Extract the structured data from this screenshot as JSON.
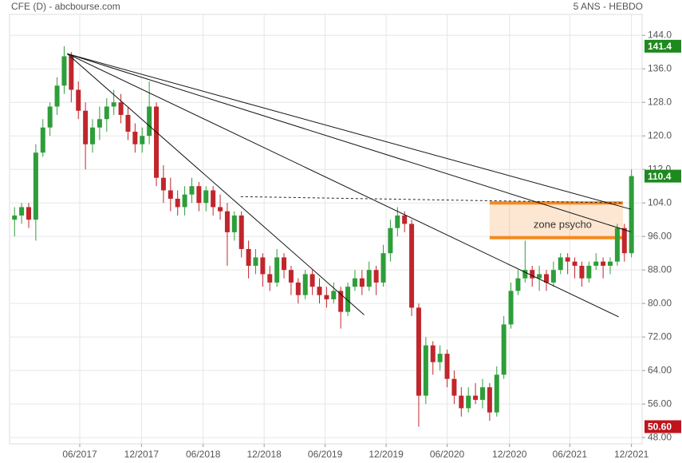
{
  "chart_data": {
    "type": "candlestick",
    "title": "CFE (D) - abcbourse.com",
    "subtitle": "5 ANS - HEBDO",
    "up_color": "#2e9e3a",
    "down_color": "#c0262c",
    "xlim": [
      -0.7,
      88.5
    ],
    "ylim": [
      46.5,
      149
    ],
    "yticks": [
      {
        "value": 48,
        "label": "48.00"
      },
      {
        "value": 56,
        "label": "56.00"
      },
      {
        "value": 64,
        "label": "64.00"
      },
      {
        "value": 72,
        "label": "72.00"
      },
      {
        "value": 80,
        "label": "80.00"
      },
      {
        "value": 88,
        "label": "88.00"
      },
      {
        "value": 96,
        "label": "96.00"
      },
      {
        "value": 104,
        "label": "104.0"
      },
      {
        "value": 112,
        "label": "112.0"
      },
      {
        "value": 120,
        "label": "120.0"
      },
      {
        "value": 128,
        "label": "128.0"
      },
      {
        "value": 136,
        "label": "136.0"
      },
      {
        "value": 144,
        "label": "144.0"
      }
    ],
    "xticks": [
      {
        "value": 9.2,
        "label": "06/2017"
      },
      {
        "value": 17.9,
        "label": "12/2017"
      },
      {
        "value": 26.6,
        "label": "06/2018"
      },
      {
        "value": 35.2,
        "label": "12/2018"
      },
      {
        "value": 43.8,
        "label": "06/2019"
      },
      {
        "value": 52.4,
        "label": "12/2019"
      },
      {
        "value": 61,
        "label": "06/2020"
      },
      {
        "value": 69.8,
        "label": "12/2020"
      },
      {
        "value": 78.3,
        "label": "06/2021"
      },
      {
        "value": 87,
        "label": "12/2021"
      }
    ],
    "grid": true,
    "candles": [
      [
        100,
        103,
        96,
        101
      ],
      [
        101,
        104,
        99,
        103
      ],
      [
        103,
        104,
        98,
        100
      ],
      [
        100,
        118,
        95,
        116
      ],
      [
        116,
        124,
        115,
        122
      ],
      [
        122,
        128,
        120,
        127
      ],
      [
        127,
        134,
        125,
        132
      ],
      [
        132,
        141.4,
        130,
        139
      ],
      [
        139,
        140,
        128,
        131
      ],
      [
        131,
        133,
        124,
        126
      ],
      [
        126,
        128,
        112,
        118
      ],
      [
        118,
        124,
        116,
        122
      ],
      [
        122,
        127,
        119,
        124
      ],
      [
        124,
        129,
        121,
        127
      ],
      [
        127,
        131,
        125,
        128
      ],
      [
        128,
        130,
        123,
        125
      ],
      [
        125,
        127,
        119,
        121
      ],
      [
        121,
        123,
        116,
        118
      ],
      [
        118,
        122,
        116,
        120
      ],
      [
        120,
        133,
        118,
        127
      ],
      [
        127,
        128,
        108,
        110
      ],
      [
        110,
        113,
        104,
        107
      ],
      [
        107,
        110,
        102,
        105
      ],
      [
        105,
        107,
        101,
        103
      ],
      [
        103,
        108,
        101,
        106
      ],
      [
        106,
        110,
        104,
        108
      ],
      [
        108,
        109,
        102,
        104
      ],
      [
        104,
        108,
        102,
        107
      ],
      [
        107,
        108,
        101,
        103
      ],
      [
        103,
        106,
        100,
        102
      ],
      [
        102,
        104,
        89,
        97
      ],
      [
        97,
        102,
        95,
        101
      ],
      [
        101,
        102,
        91,
        93
      ],
      [
        93,
        95,
        86,
        89
      ],
      [
        89,
        93,
        87,
        91
      ],
      [
        91,
        92,
        84,
        87
      ],
      [
        87,
        89,
        83,
        85
      ],
      [
        85,
        93,
        84,
        91
      ],
      [
        91,
        92,
        86,
        88
      ],
      [
        88,
        89,
        82,
        85
      ],
      [
        85,
        86,
        80,
        82
      ],
      [
        82,
        88,
        81,
        87
      ],
      [
        87,
        88,
        82,
        84
      ],
      [
        84,
        86,
        80,
        82
      ],
      [
        82,
        84,
        79,
        81
      ],
      [
        81,
        85,
        80,
        83
      ],
      [
        83,
        84,
        74,
        78
      ],
      [
        78,
        85,
        77,
        84
      ],
      [
        84,
        88,
        83,
        86
      ],
      [
        86,
        88,
        82,
        84
      ],
      [
        84,
        90,
        83,
        88
      ],
      [
        88,
        89,
        82,
        85
      ],
      [
        85,
        94,
        84,
        92
      ],
      [
        92,
        100,
        90,
        98
      ],
      [
        98,
        103,
        96,
        101
      ],
      [
        101,
        102,
        97,
        99
      ],
      [
        99,
        100,
        77,
        79
      ],
      [
        79,
        80,
        50.6,
        58
      ],
      [
        58,
        72,
        56,
        70
      ],
      [
        70,
        71,
        63,
        66
      ],
      [
        66,
        70,
        64,
        68
      ],
      [
        68,
        69,
        60,
        62
      ],
      [
        62,
        64,
        56,
        58
      ],
      [
        58,
        60,
        53,
        55
      ],
      [
        55,
        60,
        54,
        58
      ],
      [
        58,
        61,
        56,
        57
      ],
      [
        57,
        62,
        55,
        60
      ],
      [
        60,
        61,
        52,
        54
      ],
      [
        54,
        65,
        53,
        63
      ],
      [
        63,
        77,
        62,
        75
      ],
      [
        75,
        85,
        74,
        83
      ],
      [
        83,
        88,
        82,
        86
      ],
      [
        86,
        95,
        85,
        88
      ],
      [
        88,
        89,
        84,
        86
      ],
      [
        86,
        89,
        83,
        87
      ],
      [
        87,
        88,
        83,
        85
      ],
      [
        85,
        90,
        84,
        88
      ],
      [
        88,
        92,
        87,
        91
      ],
      [
        91,
        92,
        87,
        90
      ],
      [
        90,
        91,
        86,
        89
      ],
      [
        89,
        90,
        84,
        86
      ],
      [
        86,
        90,
        85,
        89
      ],
      [
        89,
        92,
        88,
        90
      ],
      [
        90,
        91,
        86,
        89
      ],
      [
        89,
        91,
        87,
        90
      ],
      [
        90,
        99,
        89,
        98
      ],
      [
        98,
        99,
        90,
        92
      ],
      [
        92,
        112,
        91,
        110.4
      ]
    ],
    "trendlines": [
      {
        "x": [
          7.44,
          86.9
        ],
        "y": [
          139.6,
          102.5
        ]
      },
      {
        "x": [
          7.44,
          86.9
        ],
        "y": [
          139.6,
          97.1
        ]
      },
      {
        "x": [
          7.44,
          85.2
        ],
        "y": [
          139.6,
          76.8
        ]
      },
      {
        "x": [
          7.44,
          49.3
        ],
        "y": [
          139.6,
          77.3
        ]
      }
    ],
    "dashed_line": {
      "x": [
        31.9,
        85.8
      ],
      "y": [
        105.5,
        104
      ]
    },
    "zone": {
      "label": "zone psycho",
      "x": [
        67,
        85.8
      ],
      "y": [
        95.7,
        104
      ],
      "color": "#f5891f"
    },
    "price_labels": [
      {
        "value": 141.4,
        "label": "141.4",
        "color": "#1e8a1e"
      },
      {
        "value": 110.4,
        "label": "110.4",
        "color": "#1e8a1e"
      },
      {
        "value": 50.6,
        "label": "50.60",
        "color": "#c0141c"
      }
    ]
  }
}
